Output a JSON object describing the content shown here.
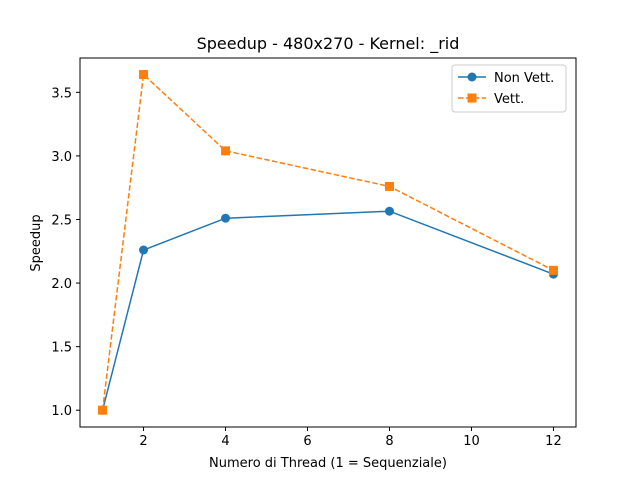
{
  "chart_data": {
    "type": "line",
    "title": "Speedup - 480x270 - Kernel: _rid",
    "xlabel": "Numero di Thread (1 = Sequenziale)",
    "ylabel": "Speedup",
    "x": [
      1,
      2,
      4,
      8,
      12
    ],
    "xticks": [
      2,
      4,
      6,
      8,
      10,
      12
    ],
    "xlim": [
      0.45,
      12.55
    ],
    "yticks": [
      1.0,
      1.5,
      2.0,
      2.5,
      3.0,
      3.5
    ],
    "ylim": [
      0.868,
      3.77
    ],
    "grid": false,
    "legend_position": "upper-right",
    "series": [
      {
        "name": "Non Vett.",
        "values": [
          1.0,
          2.26,
          2.51,
          2.565,
          2.07
        ],
        "color": "#1f77b4",
        "marker": "circle",
        "linestyle": "solid"
      },
      {
        "name": "Vett.",
        "values": [
          1.0,
          3.64,
          3.04,
          2.76,
          2.1
        ],
        "color": "#ff7f0e",
        "marker": "square",
        "linestyle": "dashed"
      }
    ]
  }
}
